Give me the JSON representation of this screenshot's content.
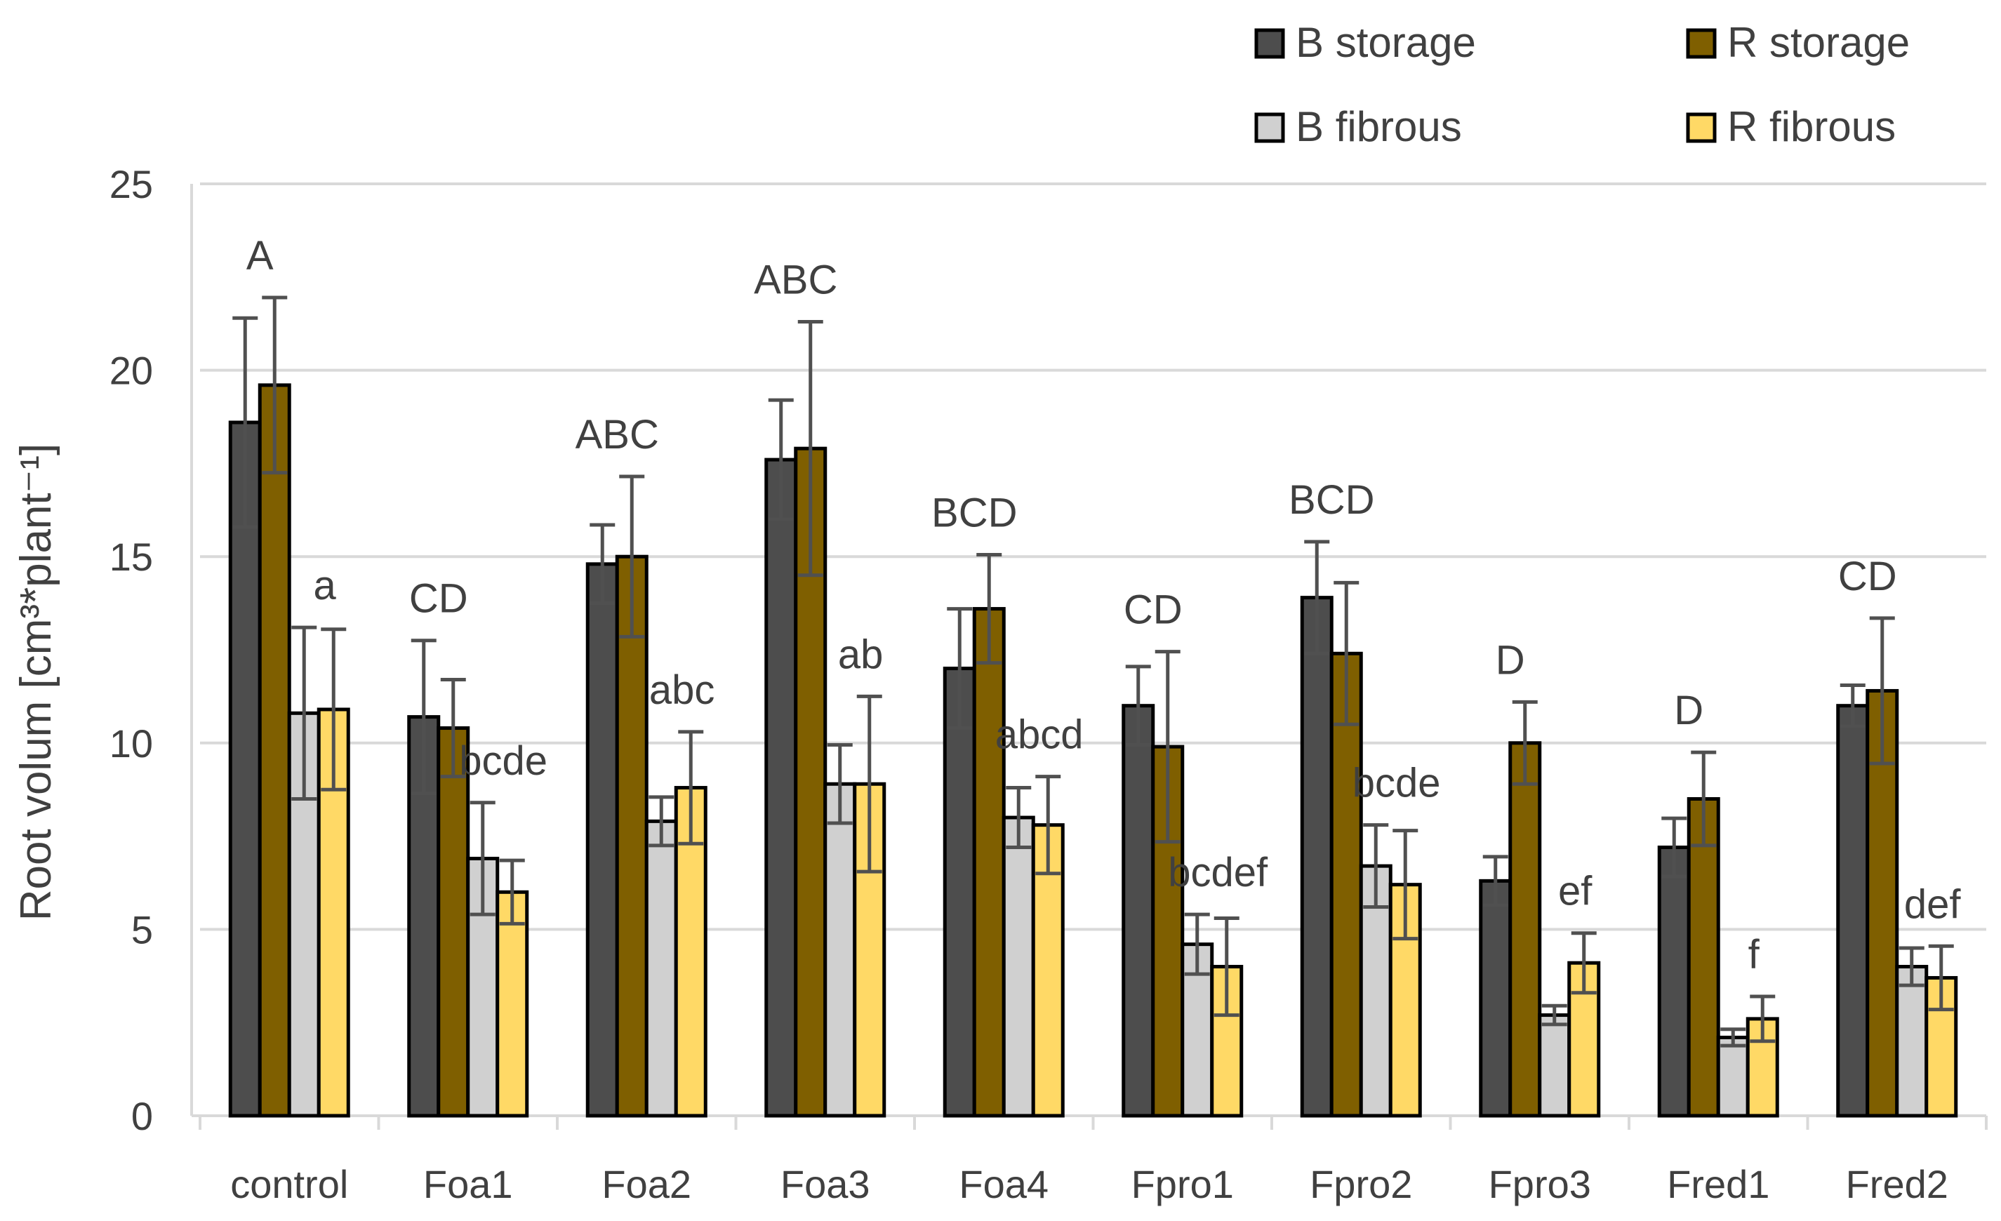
{
  "chart_data": {
    "type": "bar",
    "title": "",
    "xlabel": "",
    "ylabel": "Root volum [cm³*plant⁻¹]",
    "ylim": [
      0,
      25
    ],
    "yticks": [
      "0",
      "5",
      "10",
      "15",
      "20",
      "25"
    ],
    "grid": true,
    "legend_position": "top-right",
    "categories": [
      "control",
      "Foa1",
      "Foa2",
      "Foa3",
      "Foa4",
      "Fpro1",
      "Fpro2",
      "Fpro3",
      "Fred1",
      "Fred2"
    ],
    "series": [
      {
        "name": "B storage",
        "color": "#4d4d4d",
        "values": [
          18.6,
          10.7,
          14.8,
          17.6,
          12.0,
          11.0,
          13.9,
          6.3,
          7.2,
          11.0
        ],
        "errors": [
          2.8,
          2.05,
          1.05,
          1.6,
          1.6,
          1.05,
          1.5,
          0.65,
          0.78,
          0.55
        ]
      },
      {
        "name": "R storage",
        "color": "#7f5f00",
        "values": [
          19.6,
          10.4,
          15.0,
          17.9,
          13.6,
          9.9,
          12.4,
          10.0,
          8.5,
          11.4
        ],
        "errors": [
          2.35,
          1.3,
          2.15,
          3.4,
          1.45,
          2.55,
          1.9,
          1.1,
          1.25,
          1.95
        ]
      },
      {
        "name": "B fibrous",
        "color": "#d0d0d0",
        "values": [
          10.8,
          6.9,
          7.9,
          8.9,
          8.0,
          4.6,
          6.7,
          2.7,
          2.1,
          4.0
        ],
        "errors": [
          2.3,
          1.5,
          0.65,
          1.05,
          0.8,
          0.8,
          1.1,
          0.25,
          0.22,
          0.5
        ]
      },
      {
        "name": "R fibrous",
        "color": "#ffd966",
        "values": [
          10.9,
          6.0,
          8.8,
          8.9,
          7.8,
          4.0,
          6.2,
          4.1,
          2.6,
          3.7
        ],
        "errors": [
          2.15,
          0.85,
          1.5,
          2.35,
          1.3,
          1.3,
          1.45,
          0.8,
          0.6,
          0.85
        ]
      }
    ],
    "storage_letters": [
      "A",
      "CD",
      "ABC",
      "ABC",
      "BCD",
      "CD",
      "BCD",
      "D",
      "D",
      "CD"
    ],
    "fibrous_letters": [
      "a",
      "bcde",
      "abc",
      "ab",
      "abcd",
      "bcdef",
      "bcde",
      "ef",
      "f",
      "def"
    ]
  }
}
